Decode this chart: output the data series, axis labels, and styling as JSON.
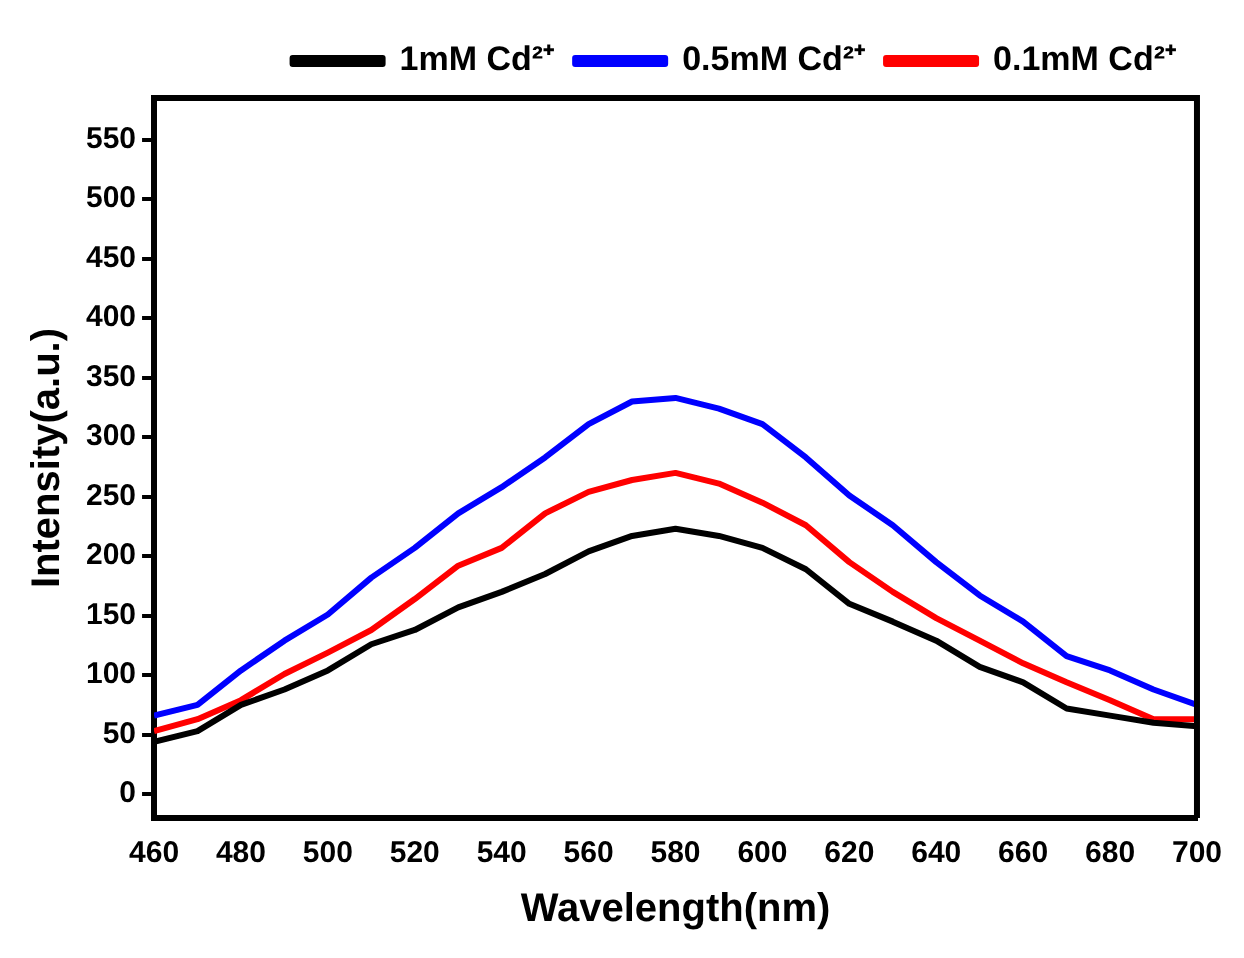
{
  "chart_data": {
    "type": "line",
    "xlabel": "Wavelength(nm)",
    "ylabel": "Intensity(a.u.)",
    "x": [
      460,
      470,
      480,
      490,
      500,
      510,
      520,
      530,
      540,
      550,
      560,
      570,
      580,
      590,
      600,
      610,
      620,
      630,
      640,
      650,
      660,
      670,
      680,
      690,
      700
    ],
    "xlim": [
      460,
      700
    ],
    "xticks": [
      460,
      480,
      500,
      520,
      540,
      560,
      580,
      600,
      620,
      640,
      660,
      680,
      700
    ],
    "ylim": [
      -20,
      585
    ],
    "yticks": [
      0,
      50,
      100,
      150,
      200,
      250,
      300,
      350,
      400,
      450,
      500,
      550
    ],
    "grid": false,
    "legend": "top right",
    "marker": "none",
    "line_style": "solid",
    "series": [
      {
        "name": "1mM Cd²⁺",
        "color": "#000000",
        "values": [
          44,
          53,
          75,
          88,
          104,
          126,
          138,
          157,
          170,
          185,
          204,
          217,
          223,
          217,
          207,
          189,
          160,
          145,
          129,
          107,
          94,
          72,
          66,
          60,
          57
        ]
      },
      {
        "name": "0.5mM Cd²⁺",
        "color": "#0000ff",
        "values": [
          66,
          75,
          104,
          129,
          151,
          182,
          207,
          236,
          258,
          283,
          311,
          330,
          333,
          324,
          311,
          283,
          251,
          226,
          195,
          167,
          145,
          116,
          104,
          88,
          75
        ]
      },
      {
        "name": "0.1mM Cd²⁺",
        "color": "#ff0000",
        "values": [
          53,
          63,
          79,
          101,
          119,
          138,
          164,
          192,
          207,
          236,
          254,
          264,
          270,
          261,
          245,
          226,
          195,
          170,
          148,
          129,
          110,
          94,
          79,
          63,
          63
        ]
      }
    ]
  }
}
